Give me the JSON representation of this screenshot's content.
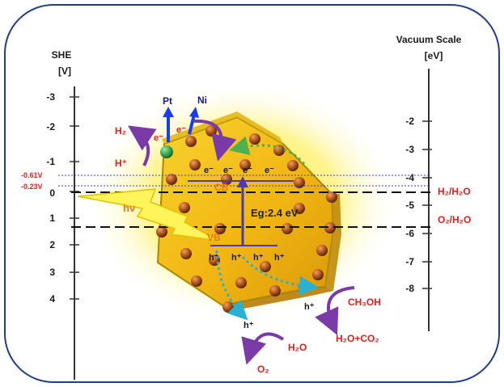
{
  "left_axis": {
    "title_line1": "SHE",
    "title_line2": "[V]",
    "ticks": [
      "-3",
      "-2",
      "-1",
      "0",
      "1",
      "2",
      "3",
      "4"
    ]
  },
  "right_axis": {
    "title_line1": "Vacuum Scale",
    "title_line2": "[eV]",
    "ticks": [
      "-2",
      "-3",
      "-4",
      "-5",
      "-6",
      "-7",
      "-8"
    ]
  },
  "level_labels": {
    "minus061": "-0.61V",
    "minus023": "-0.23V",
    "h2_h2o": "H₂/H₂O",
    "o2_h2o": "O₂/H₂O"
  },
  "particle": {
    "cb": "CB",
    "vb": "VB",
    "bandgap": "Eg:2.4 eV",
    "hv": "hν",
    "electron": "e⁻",
    "hole": "h⁺"
  },
  "cocatalysts": {
    "pt": "Pt",
    "ni": "Ni"
  },
  "reactions": {
    "h2": "H₂",
    "h_plus": "H⁺",
    "ch3oh": "CH₃OH",
    "h2o_co2": "H₂O+CO₂",
    "h2o": "H₂O",
    "o2": "O₂"
  },
  "colors": {
    "frame": "#1f3e8a",
    "particle_fill": "#f5c21a",
    "particle_edge": "#a88a00",
    "glow": "#fff07a",
    "band": "#4a3cb0",
    "reaction_arrow": "#7a3aa8",
    "electron_path": "#4caf50",
    "hole_path": "#2ab0d0",
    "pt_arrow": "#1a3cf0",
    "pt_dot": "#2a9a3a",
    "light": "#fff55a"
  }
}
